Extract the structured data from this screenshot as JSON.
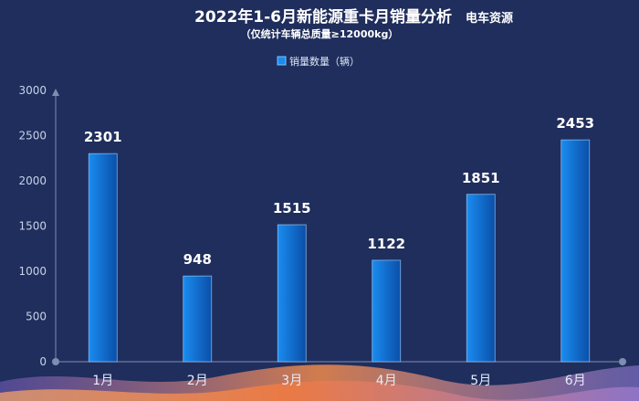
{
  "header": {
    "title": "2022年1-6月新能源重卡月销量分析",
    "brand": "电车资源",
    "subtitle": "（仅统计车辆总质量≥12000kg）"
  },
  "legend": {
    "label": "销量数量（辆）",
    "placement": "top-center"
  },
  "colors": {
    "background": "#1f2e5c",
    "bar_light": "#1a8cf0",
    "bar_dark": "#0a4fa8",
    "axis": "#7f8db3",
    "wave_orange": "#f08a4b",
    "wave_purple": "#9b7fd4"
  },
  "chart_data": {
    "type": "bar",
    "title": "2022年1-6月新能源重卡月销量分析",
    "subtitle": "（仅统计车辆总质量≥12000kg）",
    "categories": [
      "1月",
      "2月",
      "3月",
      "4月",
      "5月",
      "6月"
    ],
    "series": [
      {
        "name": "销量数量（辆）",
        "values": [
          2301,
          948,
          1515,
          1122,
          1851,
          2453
        ]
      }
    ],
    "ylim": [
      0,
      3000
    ],
    "yticks": [
      "0",
      "500",
      "1000",
      "1500",
      "2000",
      "2500",
      "3000"
    ],
    "xlabel": "",
    "ylabel": "",
    "grid": false,
    "legend": "top-center"
  }
}
